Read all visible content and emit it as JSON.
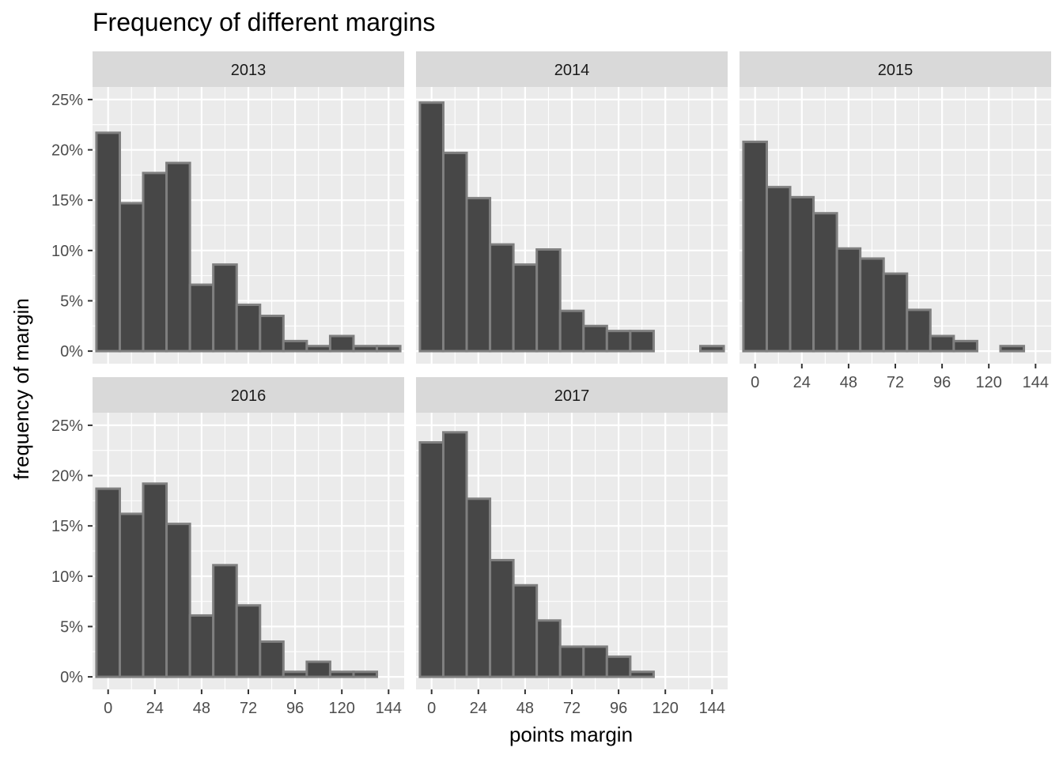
{
  "chart_data": {
    "type": "bar",
    "title": "Frequency of different margins",
    "xlabel": "points margin",
    "ylabel": "frequency of margin",
    "x_ticks": [
      0,
      24,
      48,
      72,
      96,
      120,
      144
    ],
    "y_ticks": [
      "0%",
      "5%",
      "10%",
      "15%",
      "20%",
      "25%"
    ],
    "xlim": [
      -8,
      152
    ],
    "ylim": [
      -1.25,
      26.25
    ],
    "bin_width": 12,
    "bin_centers": [
      0,
      12,
      24,
      36,
      48,
      60,
      72,
      84,
      96,
      108,
      120,
      132,
      144
    ],
    "grid": true,
    "facets": [
      {
        "label": "2013",
        "values": [
          21.7,
          14.7,
          17.7,
          18.7,
          6.6,
          8.6,
          4.6,
          3.5,
          1.0,
          0.5,
          1.5,
          0.5,
          0.5
        ]
      },
      {
        "label": "2014",
        "values": [
          24.7,
          19.7,
          15.2,
          10.6,
          8.6,
          10.1,
          4.0,
          2.5,
          2.0,
          2.0,
          0,
          0,
          0.5
        ]
      },
      {
        "label": "2015",
        "values": [
          20.8,
          16.3,
          15.3,
          13.7,
          10.2,
          9.2,
          7.7,
          4.1,
          1.5,
          1.0,
          0,
          0.5,
          0
        ]
      },
      {
        "label": "2016",
        "values": [
          18.7,
          16.2,
          19.2,
          15.2,
          6.1,
          11.1,
          7.1,
          3.5,
          0.5,
          1.5,
          0.5,
          0.5,
          0
        ]
      },
      {
        "label": "2017",
        "values": [
          23.3,
          24.3,
          17.7,
          11.6,
          9.1,
          5.6,
          3.0,
          3.0,
          2.0,
          0.5,
          0,
          0,
          0
        ]
      }
    ]
  }
}
